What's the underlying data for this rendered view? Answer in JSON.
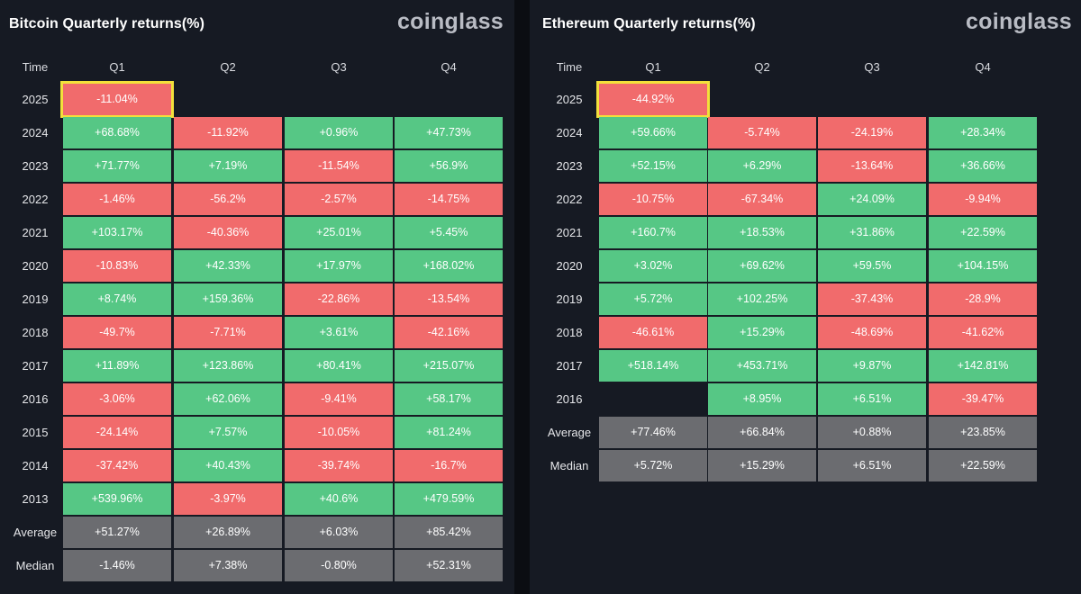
{
  "colors": {
    "positive": "#56c785",
    "negative": "#f16b6c",
    "stat": "#6b6c70",
    "highlight": "#f3e03b"
  },
  "chart_data": [
    {
      "type": "table",
      "title": "Bitcoin Quarterly returns(%)",
      "brand": "coinglass",
      "header_time": "Time",
      "columns": [
        "Q1",
        "Q2",
        "Q3",
        "Q4"
      ],
      "highlighted_cell": {
        "row": "2025",
        "column": "Q1"
      },
      "rows": [
        {
          "label": "2025",
          "values": [
            "-11.04%",
            "",
            "",
            ""
          ]
        },
        {
          "label": "2024",
          "values": [
            "+68.68%",
            "-11.92%",
            "+0.96%",
            "+47.73%"
          ]
        },
        {
          "label": "2023",
          "values": [
            "+71.77%",
            "+7.19%",
            "-11.54%",
            "+56.9%"
          ]
        },
        {
          "label": "2022",
          "values": [
            "-1.46%",
            "-56.2%",
            "-2.57%",
            "-14.75%"
          ]
        },
        {
          "label": "2021",
          "values": [
            "+103.17%",
            "-40.36%",
            "+25.01%",
            "+5.45%"
          ]
        },
        {
          "label": "2020",
          "values": [
            "-10.83%",
            "+42.33%",
            "+17.97%",
            "+168.02%"
          ]
        },
        {
          "label": "2019",
          "values": [
            "+8.74%",
            "+159.36%",
            "-22.86%",
            "-13.54%"
          ]
        },
        {
          "label": "2018",
          "values": [
            "-49.7%",
            "-7.71%",
            "+3.61%",
            "-42.16%"
          ]
        },
        {
          "label": "2017",
          "values": [
            "+11.89%",
            "+123.86%",
            "+80.41%",
            "+215.07%"
          ]
        },
        {
          "label": "2016",
          "values": [
            "-3.06%",
            "+62.06%",
            "-9.41%",
            "+58.17%"
          ]
        },
        {
          "label": "2015",
          "values": [
            "-24.14%",
            "+7.57%",
            "-10.05%",
            "+81.24%"
          ]
        },
        {
          "label": "2014",
          "values": [
            "-37.42%",
            "+40.43%",
            "-39.74%",
            "-16.7%"
          ]
        },
        {
          "label": "2013",
          "values": [
            "+539.96%",
            "-3.97%",
            "+40.6%",
            "+479.59%"
          ]
        }
      ],
      "summary": [
        {
          "label": "Average",
          "values": [
            "+51.27%",
            "+26.89%",
            "+6.03%",
            "+85.42%"
          ]
        },
        {
          "label": "Median",
          "values": [
            "-1.46%",
            "+7.38%",
            "-0.80%",
            "+52.31%"
          ]
        }
      ]
    },
    {
      "type": "table",
      "title": "Ethereum Quarterly returns(%)",
      "brand": "coinglass",
      "header_time": "Time",
      "columns": [
        "Q1",
        "Q2",
        "Q3",
        "Q4"
      ],
      "highlighted_cell": {
        "row": "2025",
        "column": "Q1"
      },
      "rows": [
        {
          "label": "2025",
          "values": [
            "-44.92%",
            "",
            "",
            ""
          ]
        },
        {
          "label": "2024",
          "values": [
            "+59.66%",
            "-5.74%",
            "-24.19%",
            "+28.34%"
          ]
        },
        {
          "label": "2023",
          "values": [
            "+52.15%",
            "+6.29%",
            "-13.64%",
            "+36.66%"
          ]
        },
        {
          "label": "2022",
          "values": [
            "-10.75%",
            "-67.34%",
            "+24.09%",
            "-9.94%"
          ]
        },
        {
          "label": "2021",
          "values": [
            "+160.7%",
            "+18.53%",
            "+31.86%",
            "+22.59%"
          ]
        },
        {
          "label": "2020",
          "values": [
            "+3.02%",
            "+69.62%",
            "+59.5%",
            "+104.15%"
          ]
        },
        {
          "label": "2019",
          "values": [
            "+5.72%",
            "+102.25%",
            "-37.43%",
            "-28.9%"
          ]
        },
        {
          "label": "2018",
          "values": [
            "-46.61%",
            "+15.29%",
            "-48.69%",
            "-41.62%"
          ]
        },
        {
          "label": "2017",
          "values": [
            "+518.14%",
            "+453.71%",
            "+9.87%",
            "+142.81%"
          ]
        },
        {
          "label": "2016",
          "values": [
            "",
            "+8.95%",
            "+6.51%",
            "-39.47%"
          ]
        }
      ],
      "summary": [
        {
          "label": "Average",
          "values": [
            "+77.46%",
            "+66.84%",
            "+0.88%",
            "+23.85%"
          ]
        },
        {
          "label": "Median",
          "values": [
            "+5.72%",
            "+15.29%",
            "+6.51%",
            "+22.59%"
          ]
        }
      ]
    }
  ]
}
